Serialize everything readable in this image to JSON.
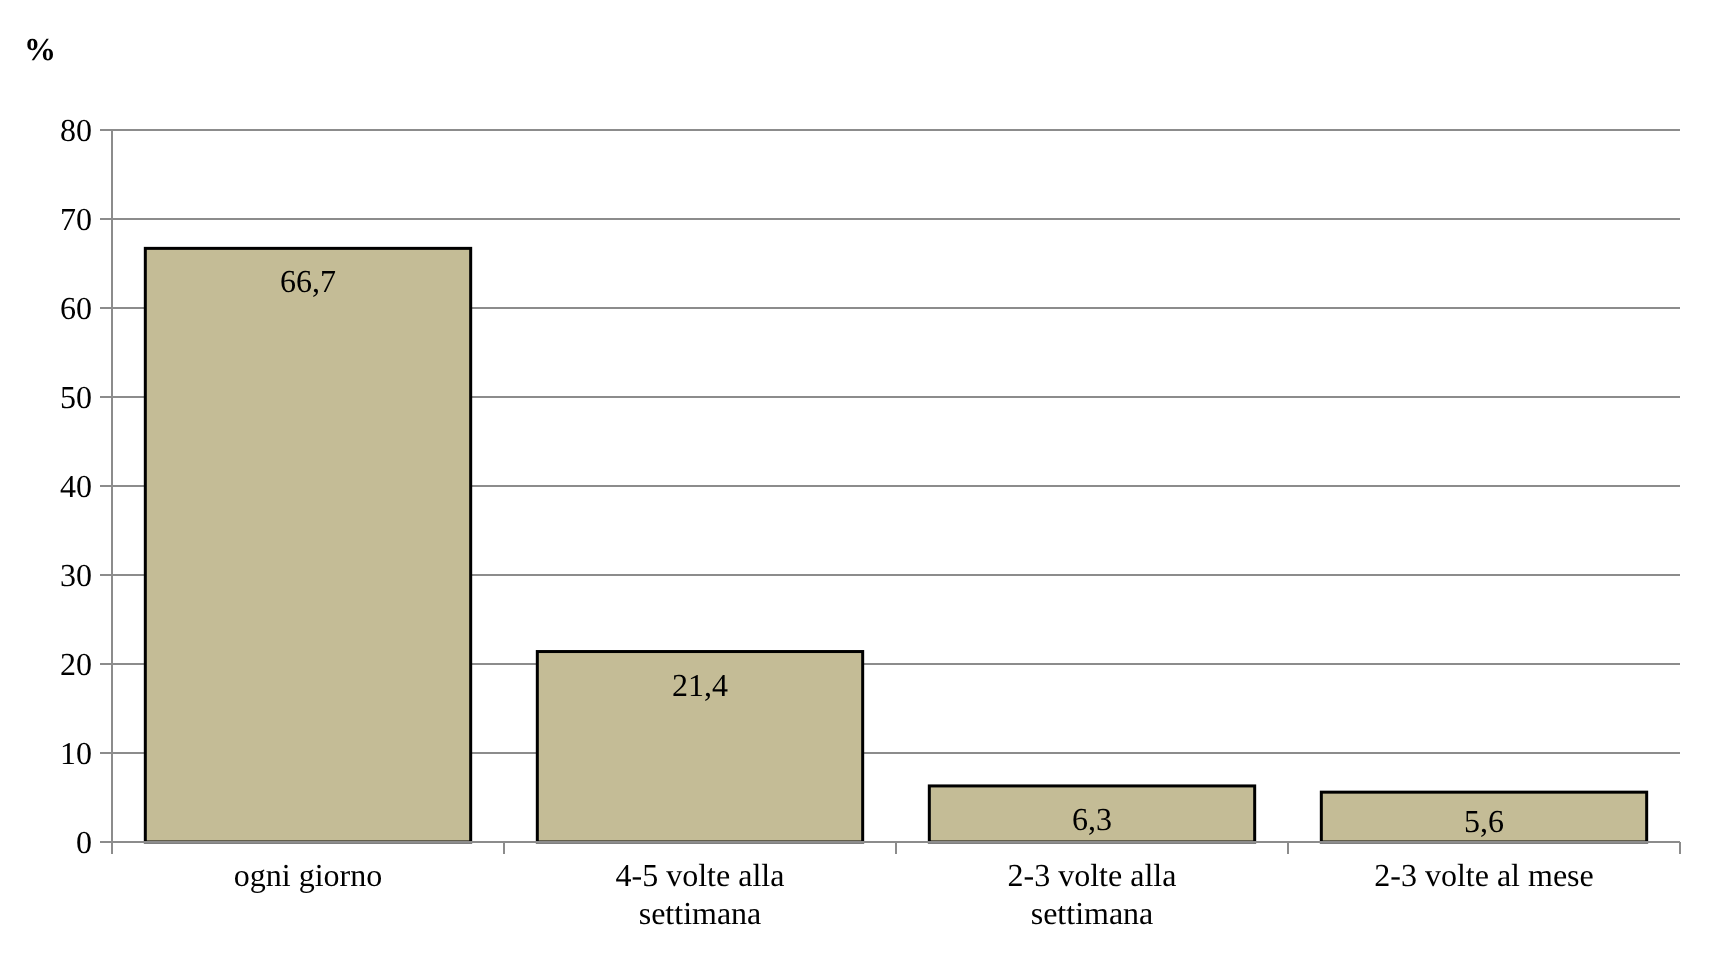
{
  "chart_data": {
    "type": "bar",
    "ylabel": "%",
    "categories": [
      "ogni giorno",
      "4-5 volte alla settimana",
      "2-3 volte alla settimana",
      "2-3 volte al mese"
    ],
    "values": [
      66.7,
      21.4,
      6.3,
      5.6
    ],
    "value_labels": [
      "66,7",
      "21,4",
      "6,3",
      "5,6"
    ],
    "color": "#c4bc96",
    "ylim": [
      0,
      80
    ],
    "yticks": [
      0,
      10,
      20,
      30,
      40,
      50,
      60,
      70,
      80
    ],
    "grid": "y"
  }
}
